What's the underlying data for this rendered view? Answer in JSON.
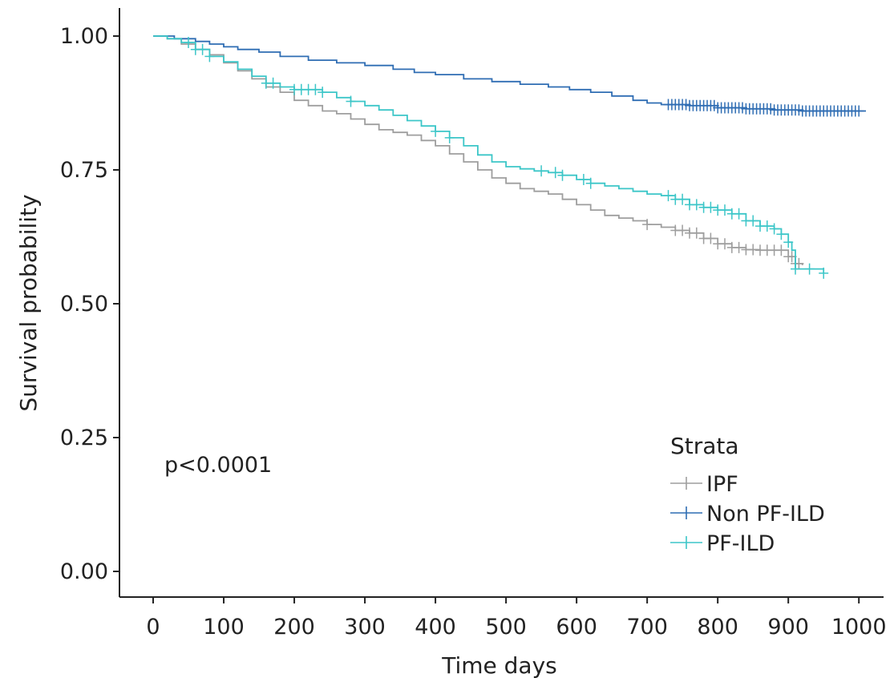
{
  "chart_data": {
    "type": "line",
    "subtype": "kaplan-meier step",
    "xlabel": "Time days",
    "ylabel": "Survival probability",
    "xlim": [
      -5,
      1010
    ],
    "ylim": [
      0,
      1
    ],
    "x_ticks": [
      0,
      100,
      200,
      300,
      400,
      500,
      600,
      700,
      800,
      900,
      1000
    ],
    "y_ticks": [
      0.0,
      0.25,
      0.5,
      0.75,
      1.0
    ],
    "x_tick_labels": [
      "0",
      "100",
      "200",
      "300",
      "400",
      "500",
      "600",
      "700",
      "800",
      "900",
      "1000"
    ],
    "y_tick_labels": [
      "0.00",
      "0.25",
      "0.50",
      "0.75",
      "1.00"
    ],
    "grid": false,
    "annotation": "p<0.0001",
    "legend": {
      "title": "Strata",
      "placement": "bottom-right",
      "entries": [
        "IPF",
        "Non PF-ILD",
        "PF-ILD"
      ]
    },
    "series": [
      {
        "name": "IPF",
        "color": "#9e9e9e",
        "points": [
          [
            0,
            1.0
          ],
          [
            20,
            0.995
          ],
          [
            40,
            0.985
          ],
          [
            60,
            0.975
          ],
          [
            80,
            0.965
          ],
          [
            100,
            0.95
          ],
          [
            120,
            0.935
          ],
          [
            140,
            0.92
          ],
          [
            160,
            0.905
          ],
          [
            180,
            0.895
          ],
          [
            200,
            0.88
          ],
          [
            220,
            0.87
          ],
          [
            240,
            0.86
          ],
          [
            260,
            0.855
          ],
          [
            280,
            0.845
          ],
          [
            300,
            0.835
          ],
          [
            320,
            0.825
          ],
          [
            340,
            0.82
          ],
          [
            360,
            0.815
          ],
          [
            380,
            0.805
          ],
          [
            400,
            0.795
          ],
          [
            420,
            0.78
          ],
          [
            440,
            0.765
          ],
          [
            460,
            0.75
          ],
          [
            480,
            0.735
          ],
          [
            500,
            0.725
          ],
          [
            520,
            0.715
          ],
          [
            540,
            0.71
          ],
          [
            560,
            0.705
          ],
          [
            580,
            0.695
          ],
          [
            600,
            0.685
          ],
          [
            620,
            0.675
          ],
          [
            640,
            0.665
          ],
          [
            660,
            0.66
          ],
          [
            680,
            0.655
          ],
          [
            700,
            0.648
          ],
          [
            720,
            0.643
          ],
          [
            740,
            0.637
          ],
          [
            760,
            0.632
          ],
          [
            780,
            0.622
          ],
          [
            800,
            0.612
          ],
          [
            820,
            0.605
          ],
          [
            840,
            0.601
          ],
          [
            860,
            0.6
          ],
          [
            880,
            0.6
          ],
          [
            900,
            0.588
          ],
          [
            910,
            0.575
          ],
          [
            920,
            0.572
          ]
        ],
        "censored": [
          700,
          740,
          750,
          760,
          770,
          780,
          790,
          800,
          810,
          820,
          830,
          840,
          850,
          860,
          870,
          880,
          890,
          900,
          905,
          910,
          915
        ]
      },
      {
        "name": "Non PF-ILD",
        "color": "#2f6db3",
        "points": [
          [
            0,
            1.0
          ],
          [
            30,
            0.995
          ],
          [
            60,
            0.99
          ],
          [
            80,
            0.985
          ],
          [
            100,
            0.98
          ],
          [
            120,
            0.975
          ],
          [
            150,
            0.97
          ],
          [
            180,
            0.962
          ],
          [
            220,
            0.955
          ],
          [
            260,
            0.95
          ],
          [
            300,
            0.945
          ],
          [
            340,
            0.938
          ],
          [
            370,
            0.932
          ],
          [
            400,
            0.928
          ],
          [
            440,
            0.92
          ],
          [
            480,
            0.915
          ],
          [
            520,
            0.91
          ],
          [
            560,
            0.905
          ],
          [
            590,
            0.9
          ],
          [
            620,
            0.895
          ],
          [
            650,
            0.888
          ],
          [
            680,
            0.88
          ],
          [
            700,
            0.875
          ],
          [
            720,
            0.872
          ],
          [
            760,
            0.87
          ],
          [
            800,
            0.866
          ],
          [
            840,
            0.864
          ],
          [
            880,
            0.862
          ],
          [
            920,
            0.86
          ],
          [
            1010,
            0.86
          ]
        ],
        "censored": [
          730,
          735,
          740,
          745,
          750,
          755,
          760,
          765,
          770,
          775,
          780,
          785,
          790,
          795,
          800,
          805,
          810,
          815,
          820,
          825,
          830,
          835,
          840,
          845,
          850,
          855,
          860,
          865,
          870,
          875,
          880,
          885,
          890,
          895,
          900,
          905,
          910,
          915,
          920,
          925,
          930,
          935,
          940,
          945,
          950,
          955,
          960,
          965,
          970,
          975,
          980,
          985,
          990,
          995,
          1000
        ]
      },
      {
        "name": "PF-ILD",
        "color": "#3cc6c8",
        "points": [
          [
            0,
            1.0
          ],
          [
            20,
            0.995
          ],
          [
            40,
            0.988
          ],
          [
            60,
            0.975
          ],
          [
            80,
            0.962
          ],
          [
            100,
            0.952
          ],
          [
            120,
            0.938
          ],
          [
            140,
            0.925
          ],
          [
            160,
            0.912
          ],
          [
            180,
            0.905
          ],
          [
            200,
            0.9
          ],
          [
            220,
            0.9
          ],
          [
            240,
            0.895
          ],
          [
            260,
            0.885
          ],
          [
            280,
            0.878
          ],
          [
            300,
            0.87
          ],
          [
            320,
            0.862
          ],
          [
            340,
            0.852
          ],
          [
            360,
            0.842
          ],
          [
            380,
            0.832
          ],
          [
            400,
            0.822
          ],
          [
            420,
            0.81
          ],
          [
            440,
            0.795
          ],
          [
            460,
            0.778
          ],
          [
            480,
            0.765
          ],
          [
            500,
            0.756
          ],
          [
            520,
            0.752
          ],
          [
            540,
            0.748
          ],
          [
            560,
            0.745
          ],
          [
            580,
            0.74
          ],
          [
            600,
            0.732
          ],
          [
            620,
            0.725
          ],
          [
            640,
            0.72
          ],
          [
            660,
            0.715
          ],
          [
            680,
            0.71
          ],
          [
            700,
            0.705
          ],
          [
            720,
            0.702
          ],
          [
            740,
            0.695
          ],
          [
            760,
            0.685
          ],
          [
            780,
            0.68
          ],
          [
            800,
            0.675
          ],
          [
            820,
            0.668
          ],
          [
            840,
            0.655
          ],
          [
            860,
            0.645
          ],
          [
            880,
            0.64
          ],
          [
            890,
            0.63
          ],
          [
            900,
            0.615
          ],
          [
            905,
            0.6
          ],
          [
            910,
            0.565
          ],
          [
            950,
            0.557
          ]
        ],
        "censored": [
          50,
          60,
          70,
          80,
          160,
          170,
          200,
          210,
          220,
          230,
          240,
          280,
          400,
          420,
          550,
          570,
          580,
          610,
          620,
          730,
          740,
          750,
          760,
          770,
          780,
          790,
          800,
          810,
          820,
          830,
          840,
          850,
          860,
          870,
          880,
          890,
          900,
          910,
          930,
          950
        ]
      }
    ]
  }
}
